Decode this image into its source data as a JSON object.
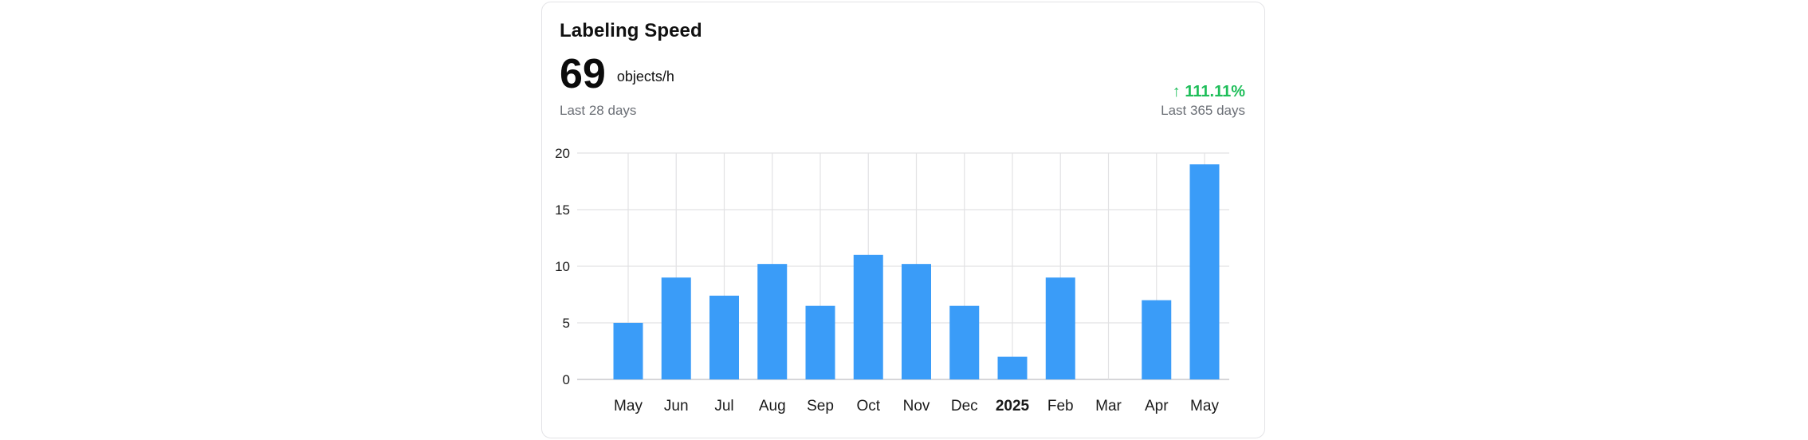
{
  "card": {
    "title": "Labeling Speed",
    "metric_value": "69",
    "metric_unit": "objects/h",
    "period_left": "Last 28 days",
    "change_arrow": "↑",
    "change_value": "111.11%",
    "period_right": "Last 365 days"
  },
  "colors": {
    "bar": "#3a9cf8",
    "change_positive": "#1fbe5a",
    "grid": "#e2e2e4"
  },
  "chart_data": {
    "type": "bar",
    "categories": [
      "May",
      "Jun",
      "Jul",
      "Aug",
      "Sep",
      "Oct",
      "Nov",
      "Dec",
      "2025",
      "Feb",
      "Mar",
      "Apr",
      "May"
    ],
    "bold_categories": [
      "2025"
    ],
    "values": [
      5,
      9,
      7.4,
      10.2,
      6.5,
      11,
      10.2,
      6.5,
      2,
      9,
      0,
      7,
      19
    ],
    "title": "",
    "xlabel": "",
    "ylabel": "",
    "ylim": [
      0,
      20
    ],
    "yticks": [
      0,
      5,
      10,
      15,
      20
    ],
    "grid": true,
    "legend": "none"
  }
}
